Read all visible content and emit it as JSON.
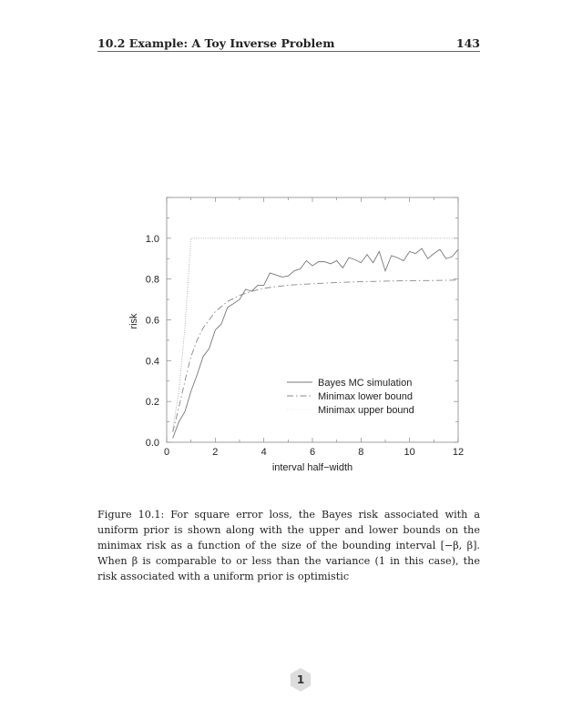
{
  "header": {
    "title": "10.2 Example: A Toy Inverse Problem",
    "page_number": "143"
  },
  "chart_data": {
    "type": "line",
    "xlabel": "interval half−width",
    "ylabel": "risk",
    "xlim": [
      0,
      12
    ],
    "ylim": [
      0,
      1.2
    ],
    "x_ticks": [
      "0",
      "2",
      "4",
      "6",
      "8",
      "10",
      "12"
    ],
    "y_ticks": [
      "0.0",
      "0.2",
      "0.4",
      "0.6",
      "0.8",
      "1.0"
    ],
    "grid": false,
    "legend_position": "lower-right",
    "series": [
      {
        "name": "Bayes MC simulation",
        "style": "solid",
        "color": "#777777",
        "x": [
          0.25,
          0.5,
          0.75,
          1,
          1.25,
          1.5,
          1.75,
          2,
          2.25,
          2.5,
          2.75,
          3,
          3.25,
          3.5,
          3.75,
          4,
          4.25,
          4.5,
          4.75,
          5,
          5.25,
          5.5,
          5.75,
          6,
          6.25,
          6.5,
          6.75,
          7,
          7.25,
          7.5,
          7.75,
          8,
          8.25,
          8.5,
          8.75,
          9,
          9.25,
          9.5,
          9.75,
          10,
          10.25,
          10.5,
          10.75,
          11,
          11.25,
          11.5,
          11.75,
          12
        ],
        "y": [
          0.02,
          0.1,
          0.15,
          0.25,
          0.33,
          0.42,
          0.46,
          0.55,
          0.58,
          0.66,
          0.68,
          0.7,
          0.75,
          0.74,
          0.77,
          0.77,
          0.83,
          0.82,
          0.81,
          0.815,
          0.84,
          0.85,
          0.89,
          0.865,
          0.885,
          0.885,
          0.875,
          0.89,
          0.855,
          0.905,
          0.895,
          0.88,
          0.92,
          0.88,
          0.935,
          0.84,
          0.915,
          0.905,
          0.89,
          0.935,
          0.925,
          0.95,
          0.9,
          0.925,
          0.945,
          0.9,
          0.91,
          0.945
        ]
      },
      {
        "name": "Minimax lower bound",
        "style": "dash-dot",
        "color": "#888888",
        "x": [
          0.25,
          0.5,
          0.75,
          1,
          1.25,
          1.5,
          2,
          2.5,
          3,
          3.5,
          4,
          5,
          6,
          7,
          8,
          9,
          10,
          11,
          12
        ],
        "y": [
          0.05,
          0.17,
          0.3,
          0.42,
          0.5,
          0.56,
          0.64,
          0.69,
          0.72,
          0.74,
          0.755,
          0.77,
          0.777,
          0.783,
          0.787,
          0.79,
          0.792,
          0.793,
          0.795
        ]
      },
      {
        "name": "Minimax upper bound",
        "style": "dotted",
        "color": "#aaaaaa",
        "x": [
          0.25,
          0.5,
          0.75,
          1,
          12
        ],
        "y": [
          0.06,
          0.25,
          0.56,
          1.0,
          1.0
        ]
      }
    ]
  },
  "caption": "Figure 10.1: For square error loss, the Bayes risk associated with a uniform prior is shown along with the upper and lower bounds on the minimax risk as a function of the size of the bounding interval [−β, β]. When β is comparable to or less than the variance (1 in this case), the risk associated with a uniform prior is optimistic",
  "footer_badge": "1"
}
